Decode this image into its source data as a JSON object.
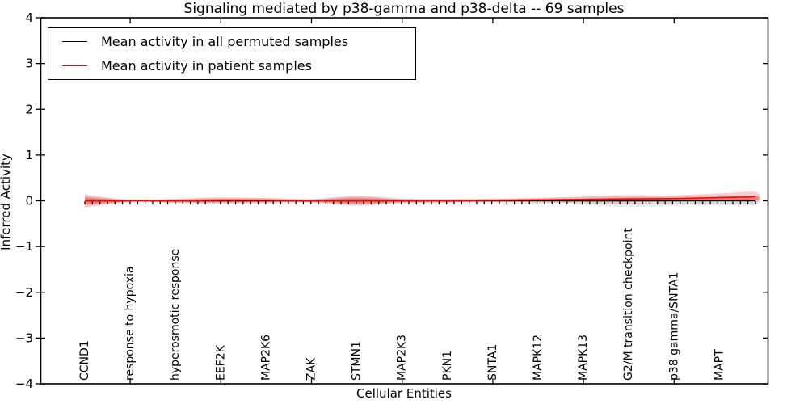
{
  "chart_data": {
    "type": "line",
    "title": "Signaling mediated by p38-gamma and p38-delta -- 69 samples",
    "xlabel": "Cellular Entities",
    "ylabel": "Inferred Activity",
    "ylim": [
      -4,
      4
    ],
    "yticks": [
      -4,
      -3,
      -2,
      -1,
      0,
      1,
      2,
      3,
      4
    ],
    "grid": false,
    "legend_position": "upper left",
    "categories": [
      "CCND1",
      "response to hypoxia",
      "hyperosmotic response",
      "EEF2K",
      "MAP2K6",
      "ZAK",
      "STMN1",
      "MAP2K3",
      "PKN1",
      "SNTA1",
      "MAPK12",
      "MAPK13",
      "G2/M transition checkpoint",
      "p38 gamma/SNTA1",
      "MAPT"
    ],
    "series": [
      {
        "name": "Mean activity in all permuted samples",
        "color": "#000000",
        "values": [
          0,
          0,
          0,
          0,
          0,
          0,
          0,
          0,
          0,
          0,
          0,
          0,
          0,
          0,
          0
        ]
      },
      {
        "name": "Mean activity in patient samples",
        "color": "#ff0000",
        "values": [
          0,
          0,
          0,
          0.01,
          0.01,
          0,
          0,
          0,
          0,
          0.01,
          0.02,
          0.03,
          0.04,
          0.05,
          0.07
        ]
      }
    ],
    "bands": [
      {
        "name": "permuted-confidence-band",
        "color": "#8a8a8a",
        "upper": [
          0.1,
          0.04,
          0.05,
          0.07,
          0.06,
          0.05,
          0.12,
          0.06,
          0.05,
          0.05,
          0.07,
          0.09,
          0.14,
          0.11,
          0.1
        ],
        "lower": [
          -0.1,
          -0.04,
          -0.05,
          -0.07,
          -0.06,
          -0.05,
          -0.12,
          -0.06,
          -0.05,
          -0.05,
          -0.07,
          -0.09,
          -0.14,
          -0.11,
          -0.1
        ]
      },
      {
        "name": "patient-confidence-band",
        "color": "#ff0000",
        "upper": [
          0.14,
          0.02,
          0.04,
          0.07,
          0.06,
          0.03,
          0.1,
          0.04,
          0.03,
          0.04,
          0.06,
          0.09,
          0.11,
          0.12,
          0.16
        ],
        "lower": [
          -0.15,
          -0.02,
          -0.04,
          -0.05,
          -0.04,
          -0.03,
          -0.09,
          -0.04,
          -0.03,
          -0.02,
          -0.02,
          -0.03,
          -0.03,
          -0.02,
          -0.01
        ]
      }
    ],
    "n_minor_ticks": 90
  }
}
